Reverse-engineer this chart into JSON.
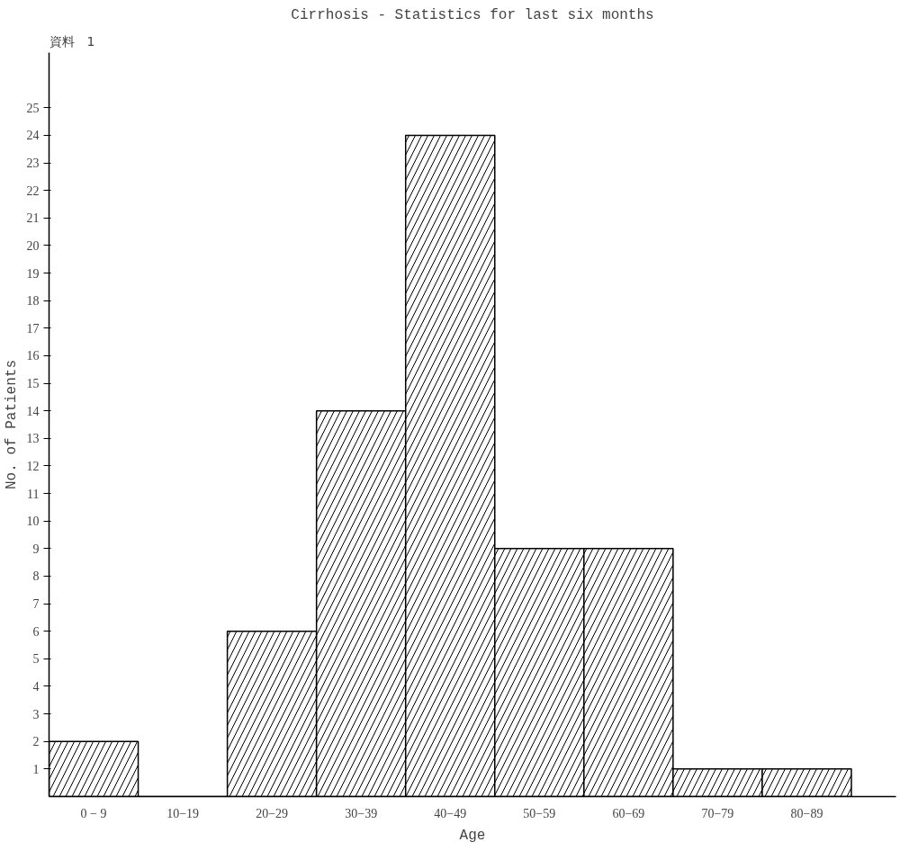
{
  "chart_data": {
    "type": "bar",
    "title": "Cirrhosis - Statistics for last six months",
    "annotations": [
      "資料　1"
    ],
    "xlabel": "Age",
    "ylabel": "No. of Patients",
    "categories": [
      "0 − 9",
      "10−19",
      "20−29",
      "30−39",
      "40−49",
      "50−59",
      "60−69",
      "70−79",
      "80−89"
    ],
    "values": [
      2,
      0,
      6,
      14,
      24,
      9,
      9,
      1,
      1
    ],
    "color": "#ffffff",
    "ylim": [
      0,
      27
    ],
    "yticks": [
      1,
      2,
      3,
      4,
      5,
      6,
      7,
      8,
      9,
      10,
      11,
      12,
      13,
      14,
      15,
      16,
      17,
      18,
      19,
      20,
      21,
      22,
      23,
      24,
      25
    ],
    "grid": false
  }
}
